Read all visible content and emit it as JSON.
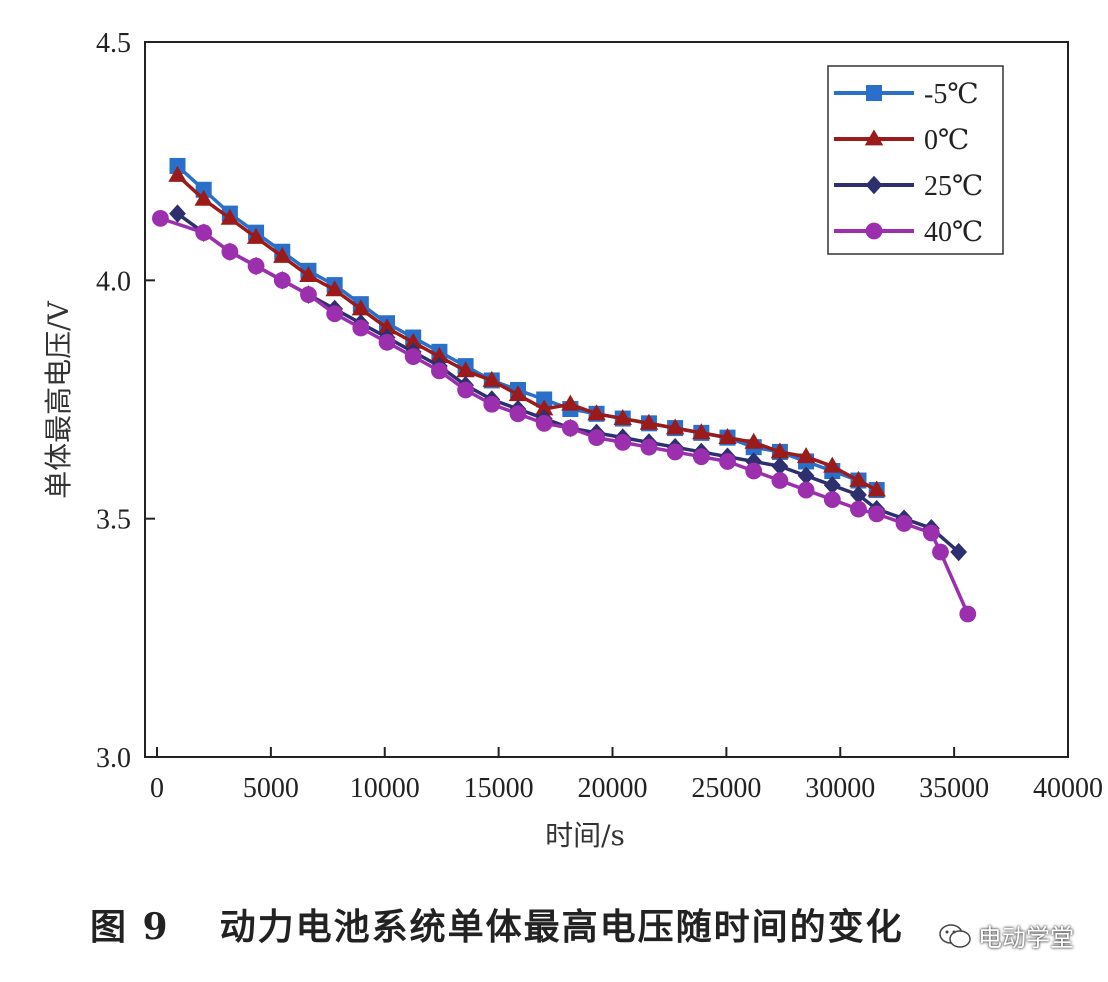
{
  "chart_data": {
    "type": "line",
    "xlabel": "时间/s",
    "ylabel": "单体最高电压/V",
    "xlim": [
      0,
      40000
    ],
    "ylim": [
      3.0,
      4.5
    ],
    "xticks": [
      0,
      5000,
      10000,
      15000,
      20000,
      25000,
      30000,
      35000,
      40000
    ],
    "yticks": [
      3.0,
      3.5,
      4.0,
      4.5
    ],
    "legend_position": "top-right",
    "grid": false,
    "series": [
      {
        "name": "-5℃",
        "color": "#2a6fc9",
        "marker": "square",
        "x": [
          900,
          2050,
          3200,
          4350,
          5500,
          6650,
          7800,
          8950,
          10100,
          11250,
          12400,
          13550,
          14700,
          15850,
          17000,
          18150,
          19300,
          20450,
          21600,
          22750,
          23900,
          25050,
          26200,
          27350,
          28500,
          29650,
          30800,
          31600
        ],
        "y": [
          4.24,
          4.19,
          4.14,
          4.1,
          4.06,
          4.02,
          3.99,
          3.95,
          3.91,
          3.88,
          3.85,
          3.82,
          3.79,
          3.77,
          3.75,
          3.73,
          3.72,
          3.71,
          3.7,
          3.69,
          3.68,
          3.67,
          3.65,
          3.64,
          3.62,
          3.6,
          3.58,
          3.56
        ]
      },
      {
        "name": "0℃",
        "color": "#9b1b1b",
        "marker": "triangle",
        "x": [
          900,
          2050,
          3200,
          4350,
          5500,
          6650,
          7800,
          8950,
          10100,
          11250,
          12400,
          13550,
          14700,
          15850,
          17000,
          18150,
          19300,
          20450,
          21600,
          22750,
          23900,
          25050,
          26200,
          27350,
          28500,
          29650,
          30800,
          31600
        ],
        "y": [
          4.22,
          4.17,
          4.13,
          4.09,
          4.05,
          4.01,
          3.98,
          3.94,
          3.9,
          3.87,
          3.84,
          3.81,
          3.79,
          3.76,
          3.73,
          3.74,
          3.72,
          3.71,
          3.7,
          3.69,
          3.68,
          3.67,
          3.66,
          3.64,
          3.63,
          3.61,
          3.58,
          3.56
        ]
      },
      {
        "name": "25℃",
        "color": "#2d2f6e",
        "marker": "diamond",
        "x": [
          900,
          2050,
          3200,
          4350,
          5500,
          6650,
          7800,
          8950,
          10100,
          11250,
          12400,
          13550,
          14700,
          15850,
          17000,
          18150,
          19300,
          20450,
          21600,
          22750,
          23900,
          25050,
          26200,
          27350,
          28500,
          29650,
          30800,
          31600,
          32800,
          34000,
          35200
        ],
        "y": [
          4.14,
          4.1,
          4.06,
          4.03,
          4.0,
          3.97,
          3.94,
          3.91,
          3.88,
          3.85,
          3.82,
          3.78,
          3.75,
          3.73,
          3.71,
          3.69,
          3.68,
          3.67,
          3.66,
          3.65,
          3.64,
          3.63,
          3.62,
          3.61,
          3.59,
          3.57,
          3.55,
          3.52,
          3.5,
          3.48,
          3.43
        ]
      },
      {
        "name": "40℃",
        "color": "#9b2fae",
        "marker": "circle",
        "x": [
          150,
          2050,
          3200,
          4350,
          5500,
          6650,
          7800,
          8950,
          10100,
          11250,
          12400,
          13550,
          14700,
          15850,
          17000,
          18150,
          19300,
          20450,
          21600,
          22750,
          23900,
          25050,
          26200,
          27350,
          28500,
          29650,
          30800,
          31600,
          32800,
          34000,
          34400,
          35600
        ],
        "y": [
          4.13,
          4.1,
          4.06,
          4.03,
          4.0,
          3.97,
          3.93,
          3.9,
          3.87,
          3.84,
          3.81,
          3.77,
          3.74,
          3.72,
          3.7,
          3.69,
          3.67,
          3.66,
          3.65,
          3.64,
          3.63,
          3.62,
          3.6,
          3.58,
          3.56,
          3.54,
          3.52,
          3.51,
          3.49,
          3.47,
          3.43,
          3.3
        ]
      }
    ]
  },
  "caption": {
    "figure_number": "图 9",
    "text": "动力电池系统单体最高电压随时间的变化"
  },
  "watermark": {
    "text": "电动学堂"
  }
}
